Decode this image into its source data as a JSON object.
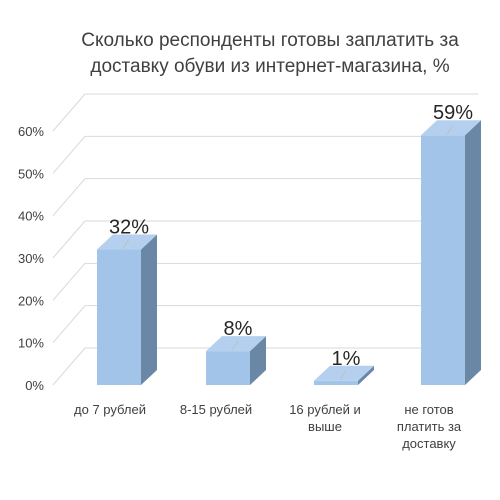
{
  "chart_data": {
    "type": "bar",
    "title": "Сколько респонденты готовы заплатить за\nдоставку обуви из интернет-магазина, %",
    "categories": [
      "до 7 рублей",
      "8-15 рублей",
      "16 рублей и выше",
      "не готов платить за доставку"
    ],
    "category_lines": [
      [
        "до 7 рублей"
      ],
      [
        "8-15 рублей"
      ],
      [
        "16 рублей и",
        "выше"
      ],
      [
        "не готов",
        "платить за",
        "доставку"
      ]
    ],
    "values": [
      32,
      8,
      1,
      59
    ],
    "data_labels": [
      "32%",
      "8%",
      "1%",
      "59%"
    ],
    "y_ticks": [
      0,
      10,
      20,
      30,
      40,
      50,
      60
    ],
    "y_tick_labels": [
      "0%",
      "10%",
      "20%",
      "30%",
      "40%",
      "50%",
      "60%"
    ],
    "ylim": [
      0,
      60
    ],
    "xlabel": "",
    "ylabel": "",
    "grid": true,
    "legend": "none",
    "style": "3d-column"
  },
  "colors": {
    "bar_front": "#a2c4e9",
    "bar_top": "#b5d0ee",
    "bar_side": "#6a87a6",
    "grid": "#d9d9d9",
    "text": "#404040"
  }
}
